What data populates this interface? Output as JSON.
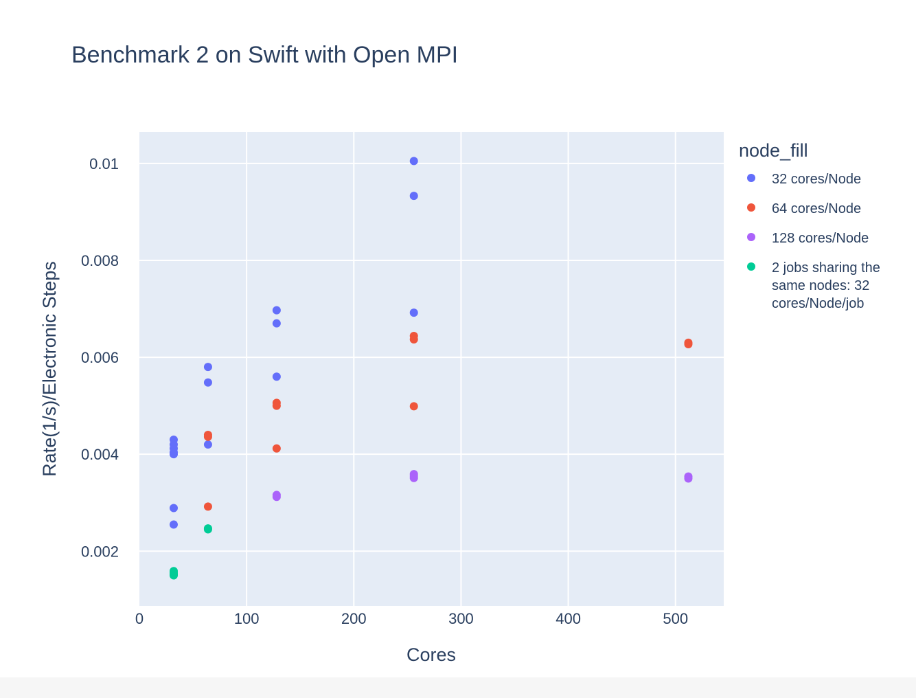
{
  "chart_data": {
    "type": "scatter",
    "title": "Benchmark 2 on Swift with Open MPI",
    "xlabel": "Cores",
    "ylabel": "Rate(1/s)/Electronic Steps",
    "xlim": [
      0,
      545
    ],
    "ylim": [
      0.00087,
      0.01065
    ],
    "xticks": [
      0,
      100,
      200,
      300,
      400,
      500
    ],
    "xtick_labels": [
      "0",
      "100",
      "200",
      "300",
      "400",
      "500"
    ],
    "yticks": [
      0.002,
      0.004,
      0.006,
      0.008,
      0.01
    ],
    "ytick_labels": [
      "0.002",
      "0.004",
      "0.006",
      "0.008",
      "0.01"
    ],
    "grid": true,
    "legend_title": "node_fill",
    "legend_position": "right",
    "series": [
      {
        "name": "32 cores/Node",
        "color": "#636efa",
        "x": [
          32,
          32,
          32,
          32,
          32,
          32,
          32,
          64,
          64,
          64,
          128,
          128,
          128,
          256,
          256,
          256
        ],
        "y": [
          0.0043,
          0.0042,
          0.00412,
          0.00404,
          0.004,
          0.00289,
          0.00255,
          0.0058,
          0.00548,
          0.0042,
          0.00697,
          0.0067,
          0.0056,
          0.01005,
          0.00933,
          0.00692
        ]
      },
      {
        "name": "64 cores/Node",
        "color": "#ef553b",
        "x": [
          64,
          64,
          64,
          128,
          128,
          128,
          256,
          256,
          256,
          512,
          512
        ],
        "y": [
          0.0044,
          0.00436,
          0.00292,
          0.00506,
          0.005,
          0.00412,
          0.00644,
          0.00637,
          0.00499,
          0.0063,
          0.00627
        ]
      },
      {
        "name": "128 cores/Node",
        "color": "#ab63fa",
        "x": [
          128,
          128,
          256,
          256,
          256,
          512,
          512
        ],
        "y": [
          0.00316,
          0.00312,
          0.00359,
          0.00355,
          0.00351,
          0.00354,
          0.0035
        ]
      },
      {
        "name": "2 jobs sharing the same nodes: 32 cores/Node/job",
        "color": "#00cc96",
        "x": [
          32,
          32,
          32,
          32,
          64,
          64
        ],
        "y": [
          0.00159,
          0.00155,
          0.00152,
          0.0015,
          0.00247,
          0.00245
        ]
      }
    ]
  }
}
